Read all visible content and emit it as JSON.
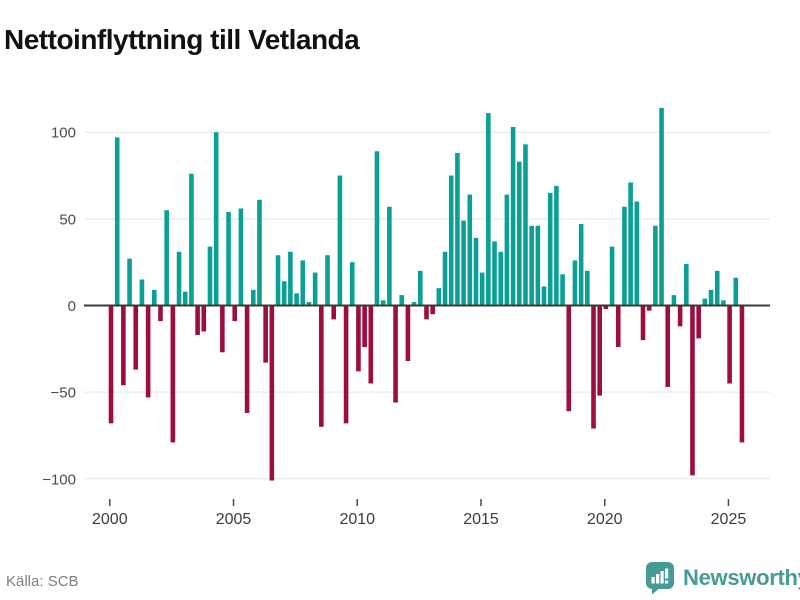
{
  "title": "Nettoinflyttning till Vetlanda",
  "footer": {
    "source": "Källa: SCB",
    "brand": "Newsworthy"
  },
  "colors": {
    "positive_bar": "#0aa096",
    "negative_bar": "#9d0d3f",
    "zero_line": "#3a3a3a",
    "gridline": "#e4e4e4",
    "brand_teal": "#479b95"
  },
  "chart_data": {
    "type": "bar",
    "title": "Nettoinflyttning till Vetlanda",
    "source": "Källa: SCB",
    "frequency": "quarterly",
    "start_period": "2000 Q1",
    "end_period": "2025 Q3",
    "grid": true,
    "legend": false,
    "xlabel": "",
    "ylabel": "",
    "ylim": [
      -110,
      120
    ],
    "x_tick_labels": [
      "2000",
      "2005",
      "2010",
      "2015",
      "2020",
      "2025"
    ],
    "y_tick_values": [
      100,
      50,
      0,
      -50,
      -100
    ],
    "y_tick_labels": [
      "100",
      "50",
      "0",
      "−50",
      "−100"
    ],
    "positive_color": "#0aa096",
    "negative_color": "#9d0d3f",
    "values": [
      -68,
      97,
      -46,
      27,
      -37,
      15,
      -53,
      9,
      -9,
      55,
      -79,
      31,
      8,
      76,
      -17,
      -15,
      34,
      100,
      -27,
      54,
      -9,
      56,
      -62,
      9,
      61,
      -33,
      -101,
      29,
      14,
      31,
      7,
      26,
      2,
      19,
      -70,
      29,
      -8,
      75,
      -68,
      25,
      -38,
      -24,
      -45,
      89,
      3,
      57,
      -56,
      6,
      -32,
      2,
      20,
      -8,
      -5,
      10,
      31,
      75,
      88,
      49,
      64,
      39,
      19,
      111,
      37,
      31,
      64,
      103,
      83,
      93,
      46,
      46,
      11,
      65,
      69,
      18,
      -61,
      26,
      47,
      20,
      -71,
      -52,
      -2,
      34,
      -24,
      57,
      71,
      60,
      -20,
      -3,
      46,
      114,
      -47,
      6,
      -12,
      24,
      -98,
      -19,
      4,
      9,
      20,
      3,
      -45,
      16,
      -79
    ]
  }
}
